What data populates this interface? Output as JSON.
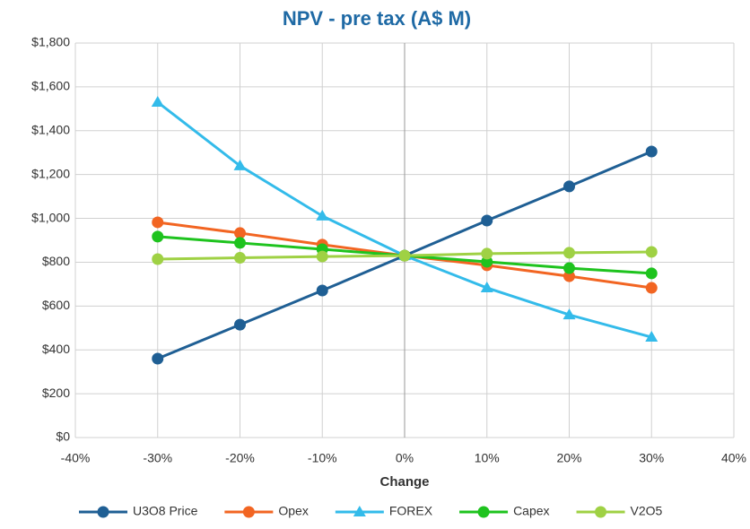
{
  "chart_data": {
    "type": "line",
    "title": "NPV - pre tax (A$ M)",
    "x_label": "Change",
    "x": [
      -30,
      -20,
      -10,
      0,
      10,
      20,
      30
    ],
    "series": [
      {
        "name": "U3O8 Price",
        "color": "#1f5f94",
        "marker": "circle",
        "values": [
          360,
          515,
          671,
          830,
          990,
          1146,
          1305
        ]
      },
      {
        "name": "Opex",
        "color": "#f26522",
        "marker": "circle",
        "values": [
          982,
          933,
          880,
          830,
          786,
          736,
          683
        ]
      },
      {
        "name": "FOREX",
        "color": "#33bbea",
        "marker": "triangle",
        "values": [
          1530,
          1240,
          1011,
          830,
          683,
          560,
          458
        ]
      },
      {
        "name": "Capex",
        "color": "#1ec31e",
        "marker": "circle",
        "values": [
          917,
          888,
          859,
          830,
          802,
          773,
          749
        ]
      },
      {
        "name": "V2O5",
        "color": "#9fd144",
        "marker": "circle",
        "values": [
          814,
          820,
          826,
          830,
          839,
          843,
          847
        ]
      }
    ],
    "xlim": [
      -40,
      40
    ],
    "xticks": [
      {
        "value": -40,
        "label": "-40%"
      },
      {
        "value": -30,
        "label": "-30%"
      },
      {
        "value": -20,
        "label": "-20%"
      },
      {
        "value": -10,
        "label": "-10%"
      },
      {
        "value": 0,
        "label": "0%"
      },
      {
        "value": 10,
        "label": "10%"
      },
      {
        "value": 20,
        "label": "20%"
      },
      {
        "value": 30,
        "label": "30%"
      },
      {
        "value": 40,
        "label": "40%"
      }
    ],
    "ylim": [
      0,
      1800
    ],
    "yticks": [
      {
        "value": 0,
        "label": "$0"
      },
      {
        "value": 200,
        "label": "$200"
      },
      {
        "value": 400,
        "label": "$400"
      },
      {
        "value": 600,
        "label": "$600"
      },
      {
        "value": 800,
        "label": "$800"
      },
      {
        "value": 1000,
        "label": "$1,000"
      },
      {
        "value": 1200,
        "label": "$1,200"
      },
      {
        "value": 1400,
        "label": "$1,400"
      },
      {
        "value": 1600,
        "label": "$1,600"
      },
      {
        "value": 1800,
        "label": "$1,800"
      }
    ],
    "grid": true,
    "legend": "bottom"
  }
}
